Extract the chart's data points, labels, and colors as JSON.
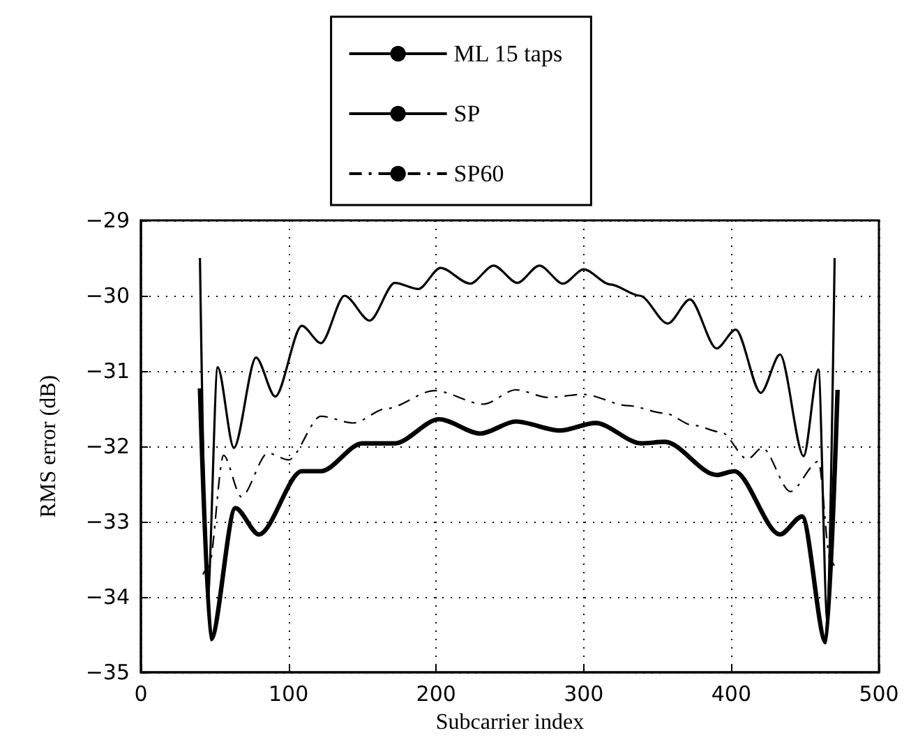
{
  "chart_data": {
    "type": "line",
    "xlabel": "Subcarrier index",
    "ylabel": "RMS error (dB)",
    "xlim": [
      0,
      500
    ],
    "xticks": [
      0,
      100,
      200,
      300,
      400,
      500
    ],
    "ylim": [
      -35,
      -29
    ],
    "yticks": [
      {
        "value": -35,
        "label": "−35"
      },
      {
        "value": -34,
        "label": "−34"
      },
      {
        "value": -33,
        "label": "−33"
      },
      {
        "value": -32,
        "label": "−32"
      },
      {
        "value": -31,
        "label": "−31"
      },
      {
        "value": -30,
        "label": "−30"
      },
      {
        "value": -29,
        "label": "−29"
      }
    ],
    "grid": true,
    "legend": "top",
    "marker": "none",
    "series": [
      {
        "name": "ML 15 taps",
        "color": "#000000",
        "line_style": "solid",
        "x": [
          40,
          45,
          52,
          63,
          78,
          91,
          109,
          122,
          138,
          155,
          172,
          188,
          203,
          223,
          239,
          255,
          270,
          286,
          300,
          318,
          338,
          357,
          372,
          390,
          403,
          420,
          433,
          449,
          459,
          465,
          470
        ],
        "values": [
          -29.5,
          -34.1,
          -30.95,
          -32.02,
          -30.82,
          -31.34,
          -30.4,
          -30.63,
          -30.0,
          -30.33,
          -29.83,
          -29.91,
          -29.63,
          -29.84,
          -29.6,
          -29.83,
          -29.6,
          -29.84,
          -29.65,
          -29.85,
          -30.0,
          -30.37,
          -30.05,
          -30.7,
          -30.45,
          -31.29,
          -30.78,
          -32.13,
          -30.98,
          -34.3,
          -29.5
        ]
      },
      {
        "name": "SP",
        "color": "#000000",
        "line_style": "solid",
        "x": [
          40,
          47.5,
          64,
          80,
          109,
          122,
          150,
          172,
          202,
          230,
          254,
          284,
          308,
          339,
          355,
          390,
          402,
          433,
          448,
          464,
          472
        ],
        "values": [
          -31.23,
          -34.56,
          -32.82,
          -33.17,
          -32.33,
          -32.33,
          -31.96,
          -31.96,
          -31.64,
          -31.83,
          -31.67,
          -31.79,
          -31.69,
          -31.96,
          -31.94,
          -32.38,
          -32.33,
          -33.17,
          -32.93,
          -34.6,
          -31.25
        ]
      },
      {
        "name": "SP60",
        "color": "#000000",
        "line_style": "dashed",
        "x": [
          42,
          46,
          56,
          68,
          86,
          100,
          122,
          144,
          166,
          199,
          232,
          254,
          276,
          300,
          330,
          355,
          374,
          393,
          411,
          421,
          440,
          459,
          467,
          470
        ],
        "values": [
          -33.7,
          -33.6,
          -32.12,
          -32.67,
          -32.09,
          -32.18,
          -31.6,
          -31.69,
          -31.5,
          -31.26,
          -31.44,
          -31.25,
          -31.35,
          -31.31,
          -31.46,
          -31.56,
          -31.72,
          -31.81,
          -32.17,
          -32.02,
          -32.6,
          -32.2,
          -33.5,
          -33.6
        ]
      }
    ]
  }
}
